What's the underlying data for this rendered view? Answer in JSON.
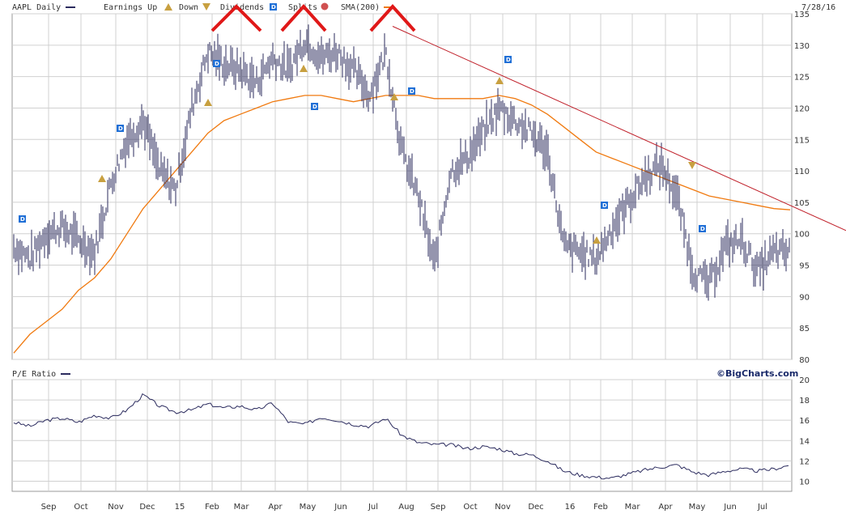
{
  "header": {
    "ticker_label": "AAPL Daily",
    "earnings_label": "Earnings Up",
    "down_label": "Down",
    "dividends_label": "Dividends",
    "splits_label": "Splits",
    "sma_label": "SMA(200)",
    "date": "7/28/16"
  },
  "lower_header": {
    "label": "P/E Ratio",
    "copyright": "©BigCharts.com"
  },
  "colors": {
    "price": "#2b2b5e",
    "sma": "#f07a10",
    "trendline": "#c0202a",
    "annotation": "#e01818",
    "dividend_badge": "#1f6fd6",
    "earnings_badge": "#c8a040",
    "grid": "#d0d0d0"
  },
  "chart_data": [
    {
      "type": "line",
      "title": "AAPL Daily",
      "ylim": [
        80,
        135
      ],
      "yticks": [
        80,
        85,
        90,
        95,
        100,
        105,
        110,
        115,
        120,
        125,
        130,
        135
      ],
      "xticks": [
        "Sep",
        "Oct",
        "Nov",
        "Dec",
        "15",
        "Feb",
        "Mar",
        "Apr",
        "May",
        "Jun",
        "Jul",
        "Aug",
        "Sep",
        "Oct",
        "Nov",
        "Dec",
        "16",
        "Feb",
        "Mar",
        "Apr",
        "May",
        "Jun",
        "Jul"
      ],
      "x": [
        "Aug",
        "Sep",
        "Sep",
        "Oct",
        "Oct",
        "Nov",
        "Nov",
        "Dec",
        "Dec",
        "Jan",
        "Jan",
        "Feb",
        "Feb",
        "Mar",
        "Mar",
        "Apr",
        "Apr",
        "May",
        "May",
        "Jun",
        "Jun",
        "Jul",
        "Jul",
        "Jul",
        "Aug",
        "Aug",
        "Aug",
        "Sep",
        "Oct",
        "Oct",
        "Nov",
        "Nov",
        "Dec",
        "Dec",
        "Jan",
        "Jan",
        "Feb",
        "Feb",
        "Mar",
        "Mar",
        "Apr",
        "Apr",
        "May",
        "May",
        "Jun",
        "Jun",
        "Jul",
        "Jul",
        "Jul"
      ],
      "series": [
        {
          "name": "AAPL Daily",
          "values": [
            98,
            96,
            100,
            101,
            99,
            97,
            108,
            115,
            118,
            110,
            107,
            120,
            129,
            127,
            126,
            124,
            128,
            126,
            131,
            128,
            129,
            126,
            122,
            129,
            113,
            106,
            95,
            110,
            112,
            116,
            120,
            118,
            116,
            113,
            98,
            97,
            96,
            101,
            105,
            109,
            111,
            106,
            94,
            92,
            98,
            99,
            94,
            97,
            97
          ]
        },
        {
          "name": "SMA(200)",
          "values": [
            81,
            84,
            86,
            88,
            91,
            93,
            96,
            100,
            104,
            107,
            110,
            113,
            116,
            118,
            119,
            120,
            121,
            121.5,
            122,
            122,
            121.5,
            121,
            121.5,
            122,
            122,
            122,
            121.5,
            121.5,
            121.5,
            121.5,
            122,
            121.5,
            120.5,
            119,
            117,
            115,
            113,
            112,
            111,
            110,
            109,
            108,
            107,
            106,
            105.5,
            105,
            104.5,
            104,
            103.8
          ]
        }
      ],
      "trendline": {
        "from": [
          126.5,
          133
        ],
        "to": [
          203,
          102
        ]
      },
      "dividends": [
        "Aug",
        "Nov",
        "Feb",
        "May",
        "Aug",
        "Nov",
        "Feb",
        "May"
      ],
      "earnings": [
        "Oct",
        "Jan",
        "Apr",
        "Jul",
        "Oct",
        "Jan",
        "Apr"
      ]
    },
    {
      "type": "line",
      "title": "P/E Ratio",
      "ylim": [
        9,
        20
      ],
      "yticks": [
        10,
        12,
        14,
        16,
        18,
        20
      ],
      "series": [
        {
          "name": "P/E Ratio",
          "values": [
            15.8,
            15.4,
            16.0,
            16.2,
            15.8,
            16.5,
            16.2,
            17.0,
            18.5,
            17.4,
            16.8,
            17.0,
            17.6,
            17.2,
            17.4,
            17.0,
            17.7,
            15.8,
            15.6,
            16.3,
            16.0,
            15.6,
            15.4,
            16.2,
            14.5,
            13.8,
            13.6,
            13.6,
            13.2,
            13.4,
            13.2,
            12.7,
            12.6,
            12.0,
            11.0,
            10.6,
            10.4,
            10.3,
            10.7,
            11.1,
            11.4,
            11.6,
            10.9,
            10.6,
            11.0,
            11.2,
            11.0,
            11.2,
            11.6
          ]
        }
      ]
    }
  ]
}
